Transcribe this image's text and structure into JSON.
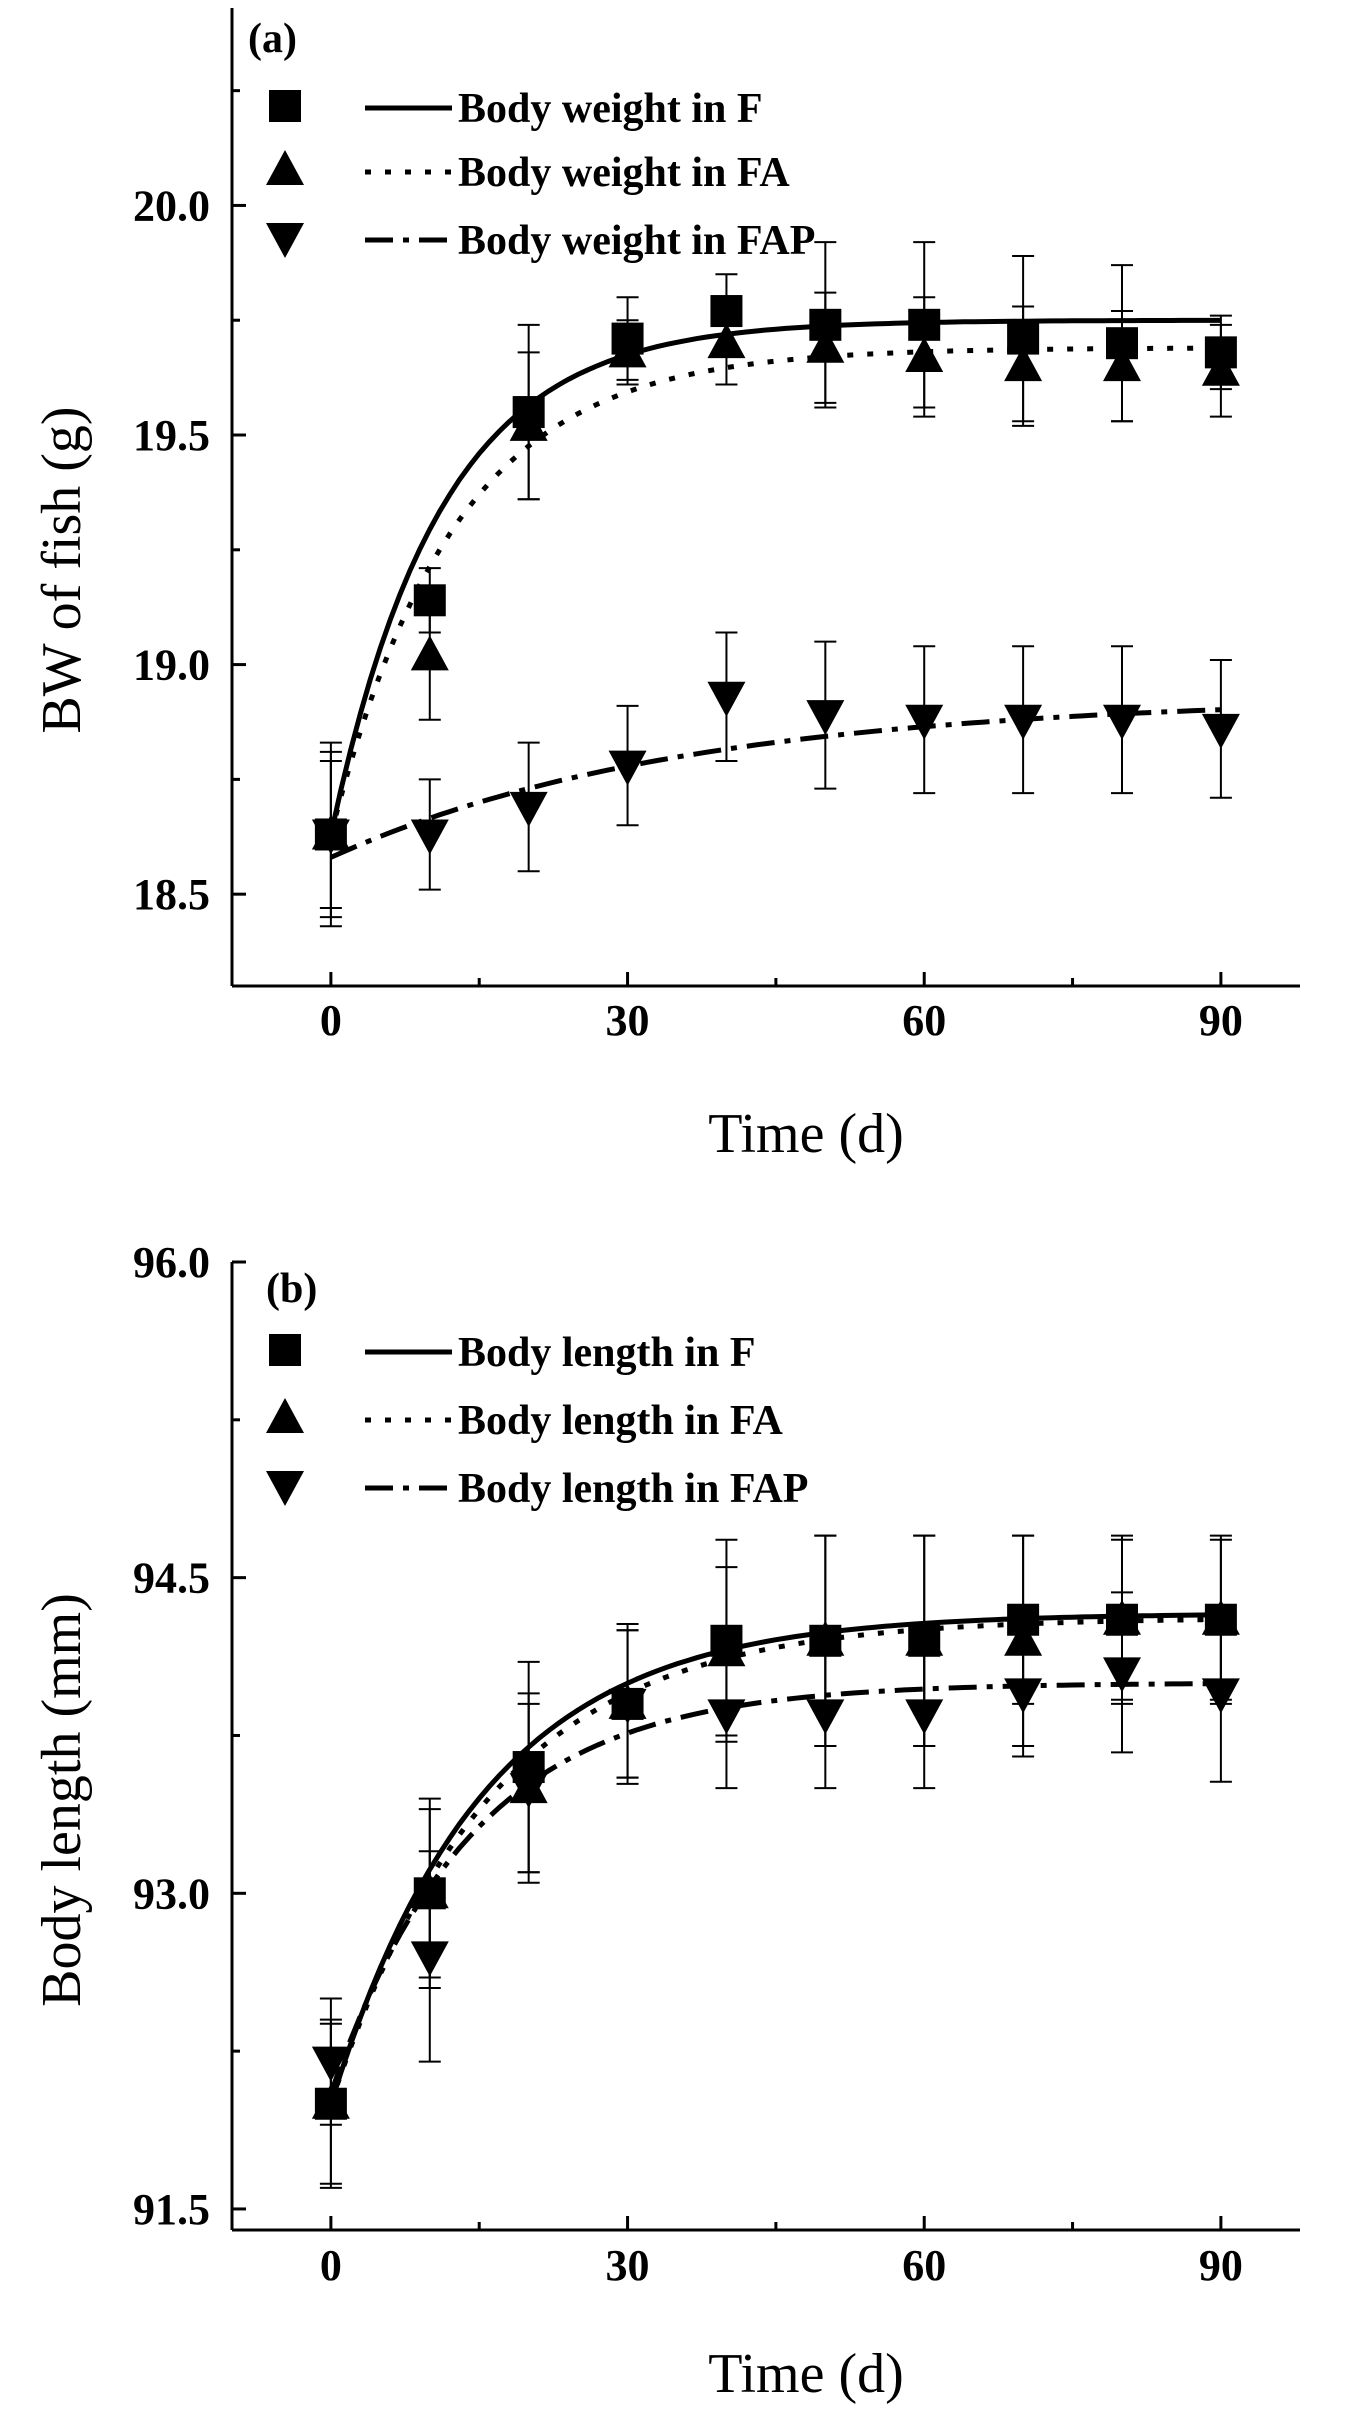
{
  "chart_data": [
    {
      "type": "scatter",
      "panel_label": "(a)",
      "xlabel": "Time (d)",
      "ylabel": "BW of fish (g)",
      "xlim": [
        -10,
        98
      ],
      "ylim": [
        18.3,
        20.43
      ],
      "xticks": [
        0,
        30,
        60,
        90
      ],
      "xticks_labels": [
        "0",
        "30",
        "60",
        "90"
      ],
      "yticks": [
        18.5,
        19.0,
        19.5,
        20.0
      ],
      "yticks_labels": [
        "18.5",
        "19.0",
        "19.5",
        "20.0"
      ],
      "x": [
        0,
        10,
        20,
        30,
        40,
        50,
        60,
        70,
        80,
        90
      ],
      "legend_position": "top-left",
      "series": [
        {
          "name": "Body weight in F",
          "marker": "square",
          "line_style": "solid",
          "values": [
            18.63,
            19.14,
            19.55,
            19.71,
            19.77,
            19.74,
            19.74,
            19.71,
            19.7,
            19.68
          ],
          "errors": [
            0.18,
            0.07,
            0.19,
            0.09,
            0.08,
            0.18,
            0.18,
            0.18,
            0.17,
            0.08
          ],
          "fit": {
            "y0": 18.63,
            "ymax": 19.75,
            "k": 0.09
          }
        },
        {
          "name": "Body weight in FA",
          "marker": "triangle-up",
          "line_style": "dotted",
          "values": [
            18.63,
            19.02,
            19.52,
            19.68,
            19.7,
            19.69,
            19.67,
            19.65,
            19.65,
            19.64
          ],
          "errors": [
            0.16,
            0.14,
            0.16,
            0.07,
            0.09,
            0.12,
            0.13,
            0.13,
            0.12,
            0.1
          ],
          "fit": {
            "y0": 18.63,
            "ymax": 19.69,
            "k": 0.08
          }
        },
        {
          "name": "Body weight in FAP",
          "marker": "triangle-down",
          "line_style": "dash-dot",
          "values": [
            18.63,
            18.63,
            18.69,
            18.78,
            18.93,
            18.89,
            18.88,
            18.88,
            18.88,
            18.86
          ],
          "errors": [
            0.2,
            0.12,
            0.14,
            0.13,
            0.14,
            0.16,
            0.16,
            0.16,
            0.16,
            0.15
          ],
          "fit": {
            "y0": 18.58,
            "ymax": 18.93,
            "k": 0.028
          }
        }
      ]
    },
    {
      "type": "scatter",
      "panel_label": "(b)",
      "xlabel": "Time (d)",
      "ylabel": "Body length (mm)",
      "xlim": [
        -10,
        98
      ],
      "ylim": [
        91.4,
        96.0
      ],
      "xticks": [
        0,
        30,
        60,
        90
      ],
      "xticks_labels": [
        "0",
        "30",
        "60",
        "90"
      ],
      "yticks": [
        91.5,
        93.0,
        94.5,
        96.0
      ],
      "yticks_labels": [
        "91.5",
        "93.0",
        "94.5",
        "96.0"
      ],
      "x": [
        0,
        10,
        20,
        30,
        40,
        50,
        60,
        70,
        80,
        90
      ],
      "legend_position": "top-left",
      "series": [
        {
          "name": "Body length in F",
          "marker": "square",
          "line_style": "solid",
          "values": [
            92.0,
            93.0,
            93.6,
            93.9,
            94.2,
            94.2,
            94.2,
            94.3,
            94.3,
            94.3
          ],
          "errors": [
            0.38,
            0.45,
            0.5,
            0.38,
            0.48,
            0.5,
            0.5,
            0.4,
            0.4,
            0.4
          ],
          "fit": {
            "y0": 92.0,
            "ymax": 94.33,
            "k": 0.065
          }
        },
        {
          "name": "Body length in FA",
          "marker": "triangle-up",
          "line_style": "dotted",
          "values": [
            92.0,
            93.0,
            93.5,
            93.9,
            94.15,
            94.2,
            94.2,
            94.2,
            94.3,
            94.3
          ],
          "errors": [
            0.4,
            0.4,
            0.4,
            0.35,
            0.4,
            0.5,
            0.5,
            0.5,
            0.38,
            0.38
          ],
          "fit": {
            "y0": 92.0,
            "ymax": 94.31,
            "k": 0.062
          }
        },
        {
          "name": "Body length in FAP",
          "marker": "triangle-down",
          "line_style": "dash-dot",
          "values": [
            92.2,
            92.7,
            93.5,
            93.9,
            93.85,
            93.85,
            93.85,
            93.95,
            94.05,
            93.95
          ],
          "errors": [
            0.3,
            0.5,
            0.45,
            0.35,
            0.35,
            0.35,
            0.35,
            0.3,
            0.38,
            0.42
          ],
          "fit": {
            "y0": 92.05,
            "ymax": 94.0,
            "k": 0.07
          }
        }
      ]
    }
  ]
}
